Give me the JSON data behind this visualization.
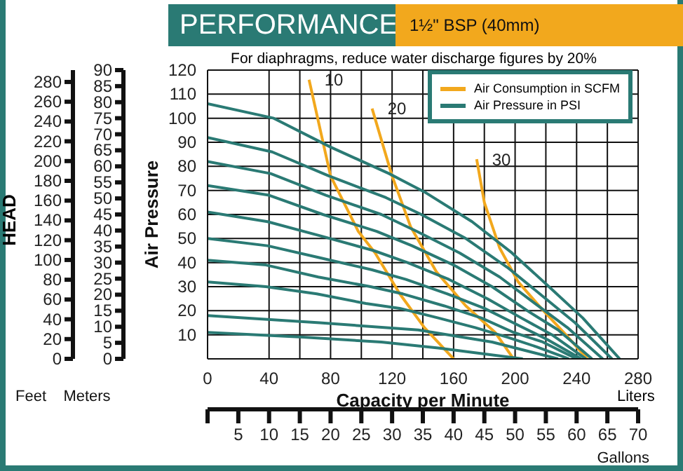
{
  "chart_data": {
    "type": "line",
    "title": "PERFORMANCE",
    "subtitle": "1½\" BSP (40mm)",
    "xlabel": "Capacity per Minute",
    "ylabel": "Air Pressure",
    "y2label": "Meters",
    "y3label": "Feet",
    "x2label": "Gallons",
    "annotations": [
      "For diaphragms, reduce water discharge figures by 20%",
      "HEAD",
      "Liters",
      {
        "text": "10",
        "x": 66,
        "y": 116
      },
      {
        "text": "20",
        "x": 107,
        "y": 104
      },
      {
        "text": "30",
        "x": 175,
        "y": 83
      }
    ],
    "xlim": [
      0,
      280
    ],
    "xticks": [
      0,
      40,
      {
        "value": 60,
        "label": null
      },
      80,
      {
        "value": 100,
        "label": null
      },
      120,
      {
        "value": 140,
        "label": null
      },
      160,
      {
        "value": 180,
        "label": null
      },
      200,
      {
        "value": 220,
        "label": null
      },
      240,
      {
        "value": 260,
        "label": null
      },
      280
    ],
    "x2lim": [
      0,
      70
    ],
    "x2ticks": [
      {
        "value": 0,
        "label": null
      },
      5,
      10,
      15,
      20,
      25,
      30,
      35,
      40,
      45,
      50,
      55,
      60,
      65,
      70
    ],
    "ylim": [
      0,
      120
    ],
    "yticks": [
      {
        "value": 0,
        "label": null
      },
      10,
      20,
      30,
      40,
      50,
      60,
      70,
      80,
      90,
      100,
      110,
      120
    ],
    "y2lim": [
      0,
      90
    ],
    "y2ticks": [
      0,
      5,
      10,
      15,
      20,
      25,
      30,
      35,
      40,
      45,
      50,
      55,
      60,
      65,
      70,
      75,
      80,
      85,
      90
    ],
    "y3lim": [
      0,
      292
    ],
    "y3ticks": [
      0,
      20,
      40,
      60,
      80,
      100,
      120,
      140,
      160,
      180,
      200,
      220,
      240,
      260,
      280
    ],
    "grid": true,
    "legend": "top right",
    "marker": "none",
    "line_style": "solid",
    "series": [
      {
        "name": "Air Consumption in SCFM",
        "color": "#f2a81d",
        "x": [
          66,
          80,
          98,
          109,
          125,
          141,
          160
        ],
        "values": [
          116,
          76,
          53,
          44,
          27,
          13,
          0
        ]
      },
      {
        "color": "#f2a81d",
        "x": [
          107,
          120,
          132,
          149,
          168,
          187,
          199
        ],
        "values": [
          104,
          76,
          55,
          36,
          22,
          11,
          0
        ]
      },
      {
        "color": "#f2a81d",
        "x": [
          175,
          180,
          190,
          202,
          217,
          233,
          247
        ],
        "values": [
          83,
          65,
          46,
          32,
          21,
          10,
          0
        ]
      },
      {
        "name": "Air Pressure in PSI",
        "color": "#2a7a74",
        "x": [
          0,
          43,
          80,
          118,
          142,
          172,
          198,
          222,
          244,
          268
        ],
        "values": [
          106,
          100,
          88,
          77,
          69,
          57,
          44,
          30,
          17,
          0
        ]
      },
      {
        "color": "#2a7a74",
        "x": [
          0,
          42,
          79,
          116,
          139,
          168,
          195,
          218,
          239,
          263
        ],
        "values": [
          92,
          86,
          76,
          67,
          60,
          50,
          38,
          26,
          15,
          0
        ]
      },
      {
        "color": "#2a7a74",
        "x": [
          0,
          41,
          77,
          113,
          136,
          164,
          190,
          213,
          234,
          257
        ],
        "values": [
          82,
          77,
          68,
          60,
          53,
          44,
          34,
          23,
          13,
          0
        ]
      },
      {
        "color": "#2a7a74",
        "x": [
          0,
          40,
          75,
          110,
          133,
          160,
          185,
          208,
          228,
          250
        ],
        "values": [
          72,
          68,
          60,
          53,
          47,
          39,
          30,
          20,
          12,
          0
        ]
      },
      {
        "color": "#2a7a74",
        "x": [
          0,
          39,
          74,
          108,
          130,
          157,
          182,
          204,
          224,
          246
        ],
        "values": [
          61,
          57,
          51,
          45,
          40,
          33,
          25,
          17,
          10,
          0
        ]
      },
      {
        "color": "#2a7a74",
        "x": [
          0,
          39,
          73,
          107,
          129,
          156,
          180,
          202,
          221,
          243
        ],
        "values": [
          50,
          47,
          42,
          37,
          33,
          27,
          21,
          14,
          8,
          0
        ]
      },
      {
        "color": "#2a7a74",
        "x": [
          0,
          38,
          72,
          106,
          127,
          154,
          178,
          199,
          218,
          240
        ],
        "values": [
          41,
          39,
          34,
          30,
          27,
          22,
          17,
          11,
          7,
          0
        ]
      },
      {
        "color": "#2a7a74",
        "x": [
          0,
          38,
          71,
          103,
          125,
          150,
          174,
          195,
          214,
          235
        ],
        "values": [
          32,
          30,
          27,
          23,
          21,
          17,
          13,
          9,
          5,
          0
        ]
      },
      {
        "color": "#2a7a74",
        "x": [
          0,
          73,
          137,
          185,
          228
        ],
        "values": [
          18,
          15,
          12,
          7,
          0
        ]
      },
      {
        "color": "#2a7a74",
        "x": [
          0,
          62,
          113,
          150,
          205
        ],
        "values": [
          11,
          9,
          7,
          4.5,
          0
        ]
      }
    ]
  }
}
